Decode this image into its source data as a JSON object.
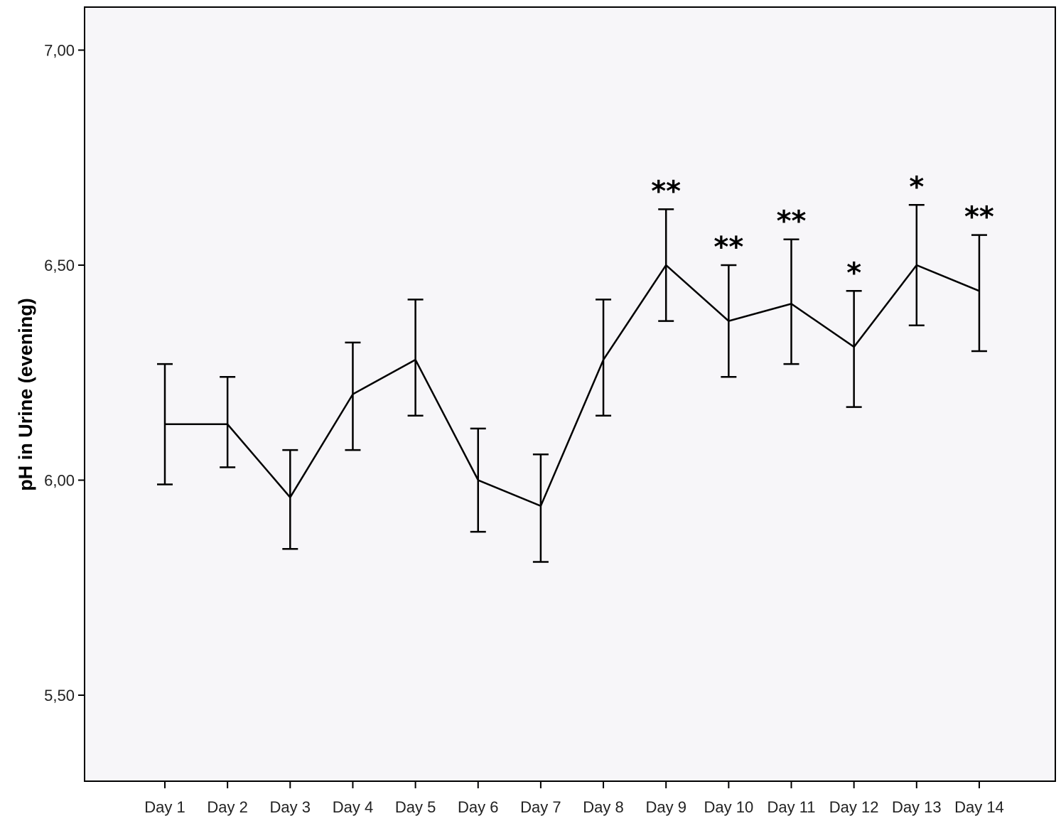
{
  "chart_data": {
    "type": "line",
    "title": "",
    "xlabel": "",
    "ylabel": "pH in Urine (evening)",
    "ylim": [
      5.3,
      7.1
    ],
    "yticks": [
      "7,00",
      "6,50",
      "6,00",
      "5,50"
    ],
    "ytick_values": [
      7.0,
      6.5,
      6.0,
      5.5
    ],
    "grid": false,
    "legend": "none",
    "categories": [
      "Day 1",
      "Day 2",
      "Day 3",
      "Day 4",
      "Day 5",
      "Day 6",
      "Day 7",
      "Day 8",
      "Day 9",
      "Day 10",
      "Day 11",
      "Day 12",
      "Day 13",
      "Day 14"
    ],
    "series": [
      {
        "values": [
          6.13,
          6.13,
          5.96,
          6.2,
          6.28,
          6.0,
          5.94,
          6.28,
          6.5,
          6.37,
          6.41,
          6.31,
          6.5,
          6.44
        ],
        "lower": [
          5.99,
          6.03,
          5.84,
          6.07,
          6.15,
          5.88,
          5.81,
          6.15,
          6.37,
          6.24,
          6.27,
          6.17,
          6.36,
          6.3
        ],
        "upper": [
          6.27,
          6.24,
          6.07,
          6.32,
          6.42,
          6.12,
          6.06,
          6.42,
          6.63,
          6.5,
          6.56,
          6.44,
          6.64,
          6.57
        ]
      }
    ],
    "annotations": [
      "",
      "",
      "",
      "",
      "",
      "",
      "",
      "",
      "**",
      "**",
      "**",
      "*",
      "*",
      "**"
    ],
    "colors": {
      "line": "#000000",
      "plot_background": "#f7f6f9",
      "axis": "#000000"
    }
  }
}
